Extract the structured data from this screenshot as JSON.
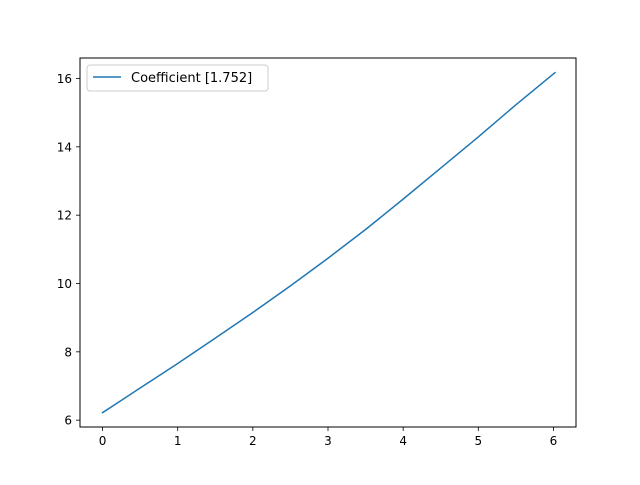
{
  "chart_data": {
    "type": "line",
    "title": "",
    "xlabel": "",
    "ylabel": "",
    "xlim": [
      -0.3,
      6.3
    ],
    "ylim": [
      5.8,
      16.6
    ],
    "xticks": [
      0,
      1,
      2,
      3,
      4,
      5,
      6
    ],
    "yticks": [
      6,
      8,
      10,
      12,
      14,
      16
    ],
    "xtick_labels": [
      "0",
      "1",
      "2",
      "3",
      "4",
      "5",
      "6"
    ],
    "ytick_labels": [
      "6",
      "8",
      "10",
      "12",
      "14",
      "16"
    ],
    "grid": false,
    "legend_position": "upper-left",
    "series": [
      {
        "name": "Coefficient [1.752]",
        "color": "#1f77b4",
        "x": [
          0,
          0.5,
          1.0,
          1.5,
          2.0,
          2.5,
          3.0,
          3.5,
          4.0,
          4.5,
          5.0,
          5.5,
          6.02
        ],
        "y": [
          6.22,
          6.94,
          7.66,
          8.4,
          9.15,
          9.93,
          10.74,
          11.58,
          12.47,
          13.38,
          14.29,
          15.23,
          16.17
        ]
      }
    ]
  }
}
